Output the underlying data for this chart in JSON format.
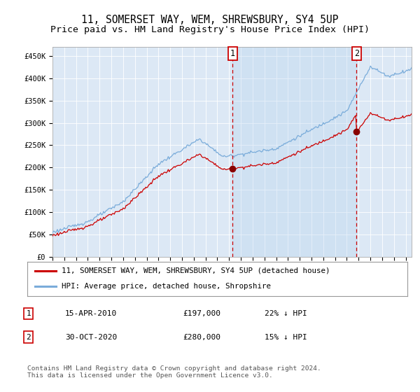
{
  "title": "11, SOMERSET WAY, WEM, SHREWSBURY, SY4 5UP",
  "subtitle": "Price paid vs. HM Land Registry's House Price Index (HPI)",
  "ylabel_ticks": [
    "£0",
    "£50K",
    "£100K",
    "£150K",
    "£200K",
    "£250K",
    "£300K",
    "£350K",
    "£400K",
    "£450K"
  ],
  "ytick_values": [
    0,
    50000,
    100000,
    150000,
    200000,
    250000,
    300000,
    350000,
    400000,
    450000
  ],
  "ylim": [
    0,
    470000
  ],
  "xlim_start": 1995.0,
  "xlim_end": 2025.5,
  "background_color": "#e8f0f8",
  "plot_bg_color": "#dce8f5",
  "hpi_color": "#7aacda",
  "price_color": "#cc0000",
  "dashed_line_color": "#cc0000",
  "shade_color": "#c8ddf0",
  "point1_x": 2010.29,
  "point1_y": 197000,
  "point2_x": 2020.83,
  "point2_y": 280000,
  "legend_label1": "11, SOMERSET WAY, WEM, SHREWSBURY, SY4 5UP (detached house)",
  "legend_label2": "HPI: Average price, detached house, Shropshire",
  "table_row1": [
    "1",
    "15-APR-2010",
    "£197,000",
    "22% ↓ HPI"
  ],
  "table_row2": [
    "2",
    "30-OCT-2020",
    "£280,000",
    "15% ↓ HPI"
  ],
  "footnote": "Contains HM Land Registry data © Crown copyright and database right 2024.\nThis data is licensed under the Open Government Licence v3.0.",
  "title_fontsize": 10.5,
  "subtitle_fontsize": 9.5,
  "tick_fontsize": 7.5,
  "monospace_font": "DejaVu Sans Mono"
}
